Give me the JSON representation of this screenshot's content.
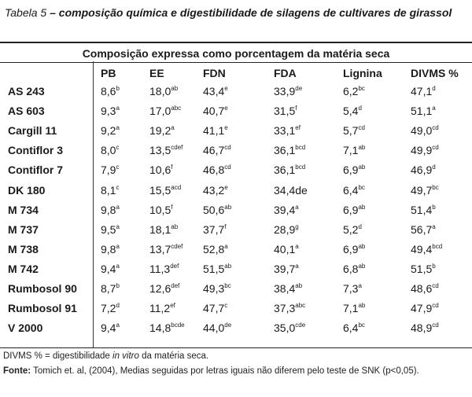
{
  "caption": {
    "label": "Tabela 5",
    "dash": " – ",
    "title": "composição química e digestibilidade de silagens de cultivares de girassol"
  },
  "subtitle": "Composição expressa como porcentagem da matéria seca",
  "headers": [
    "",
    "PB",
    "EE",
    "FDN",
    "FDA",
    "Lignina",
    "DIVMS %"
  ],
  "rows": [
    {
      "name": "AS 243",
      "cells": [
        {
          "v": "8,6",
          "s": "b"
        },
        {
          "v": "18,0",
          "s": "ab"
        },
        {
          "v": "43,4",
          "s": "e"
        },
        {
          "v": "33,9",
          "s": "de"
        },
        {
          "v": "6,2",
          "s": "bc"
        },
        {
          "v": "47,1",
          "s": "d"
        }
      ]
    },
    {
      "name": "AS 603",
      "cells": [
        {
          "v": "9,3",
          "s": "a"
        },
        {
          "v": "17,0",
          "s": "abc"
        },
        {
          "v": "40,7",
          "s": "e"
        },
        {
          "v": "31,5",
          "s": "f"
        },
        {
          "v": "5,4",
          "s": "d"
        },
        {
          "v": "51,1",
          "s": "a"
        }
      ]
    },
    {
      "name": "Cargill 11",
      "cells": [
        {
          "v": "9,2",
          "s": "a"
        },
        {
          "v": "19,2",
          "s": "a"
        },
        {
          "v": "41,1",
          "s": "e"
        },
        {
          "v": "33,1",
          "s": "ef"
        },
        {
          "v": "5,7",
          "s": "cd"
        },
        {
          "v": "49,0",
          "s": "cd"
        }
      ]
    },
    {
      "name": "Contiflor 3",
      "cells": [
        {
          "v": "8,0",
          "s": "c"
        },
        {
          "v": "13,5",
          "s": "cdef"
        },
        {
          "v": "46,7",
          "s": "cd"
        },
        {
          "v": "36,1",
          "s": "bcd"
        },
        {
          "v": "7,1",
          "s": "ab"
        },
        {
          "v": "49,9",
          "s": "cd"
        }
      ]
    },
    {
      "name": "Contiflor 7",
      "cells": [
        {
          "v": "7,9",
          "s": "c"
        },
        {
          "v": "10,6",
          "s": "f"
        },
        {
          "v": "46,8",
          "s": "cd"
        },
        {
          "v": "36,1",
          "s": "bcd"
        },
        {
          "v": "6,9",
          "s": "ab"
        },
        {
          "v": "46,9",
          "s": "d"
        }
      ]
    },
    {
      "name": "DK 180",
      "cells": [
        {
          "v": "8,1",
          "s": "c"
        },
        {
          "v": "15,5",
          "s": "acd"
        },
        {
          "v": "43,2",
          "s": "e"
        },
        {
          "v": "34,4de",
          "s": ""
        },
        {
          "v": "6,4",
          "s": "bc"
        },
        {
          "v": "49,7",
          "s": "bc"
        }
      ]
    },
    {
      "name": "M 734",
      "cells": [
        {
          "v": "9,8",
          "s": "a"
        },
        {
          "v": "10,5",
          "s": "f"
        },
        {
          "v": "50,6",
          "s": "ab"
        },
        {
          "v": "39,4",
          "s": "a"
        },
        {
          "v": "6,9",
          "s": "ab"
        },
        {
          "v": "51,4",
          "s": "b"
        }
      ]
    },
    {
      "name": "M 737",
      "cells": [
        {
          "v": "9,5",
          "s": "a"
        },
        {
          "v": "18,1",
          "s": "ab"
        },
        {
          "v": "37,7",
          "s": "f"
        },
        {
          "v": "28,9",
          "s": "g"
        },
        {
          "v": "5,2",
          "s": "d"
        },
        {
          "v": "56,7",
          "s": "a"
        }
      ]
    },
    {
      "name": "M 738",
      "cells": [
        {
          "v": "9,8",
          "s": "a"
        },
        {
          "v": "13,7",
          "s": "cdef"
        },
        {
          "v": "52,8",
          "s": "a"
        },
        {
          "v": "40,1",
          "s": "a"
        },
        {
          "v": "6,9",
          "s": "ab"
        },
        {
          "v": "49,4",
          "s": "bcd"
        }
      ]
    },
    {
      "name": "M 742",
      "cells": [
        {
          "v": "9,4",
          "s": "a"
        },
        {
          "v": "11,3",
          "s": "def"
        },
        {
          "v": "51,5",
          "s": "ab"
        },
        {
          "v": "39,7",
          "s": "a"
        },
        {
          "v": "6,8",
          "s": "ab"
        },
        {
          "v": "51,5",
          "s": "b"
        }
      ]
    },
    {
      "name": "Rumbosol 90",
      "cells": [
        {
          "v": "8,7",
          "s": "b"
        },
        {
          "v": "12,6",
          "s": "def"
        },
        {
          "v": "49,3",
          "s": "bc"
        },
        {
          "v": "38,4",
          "s": "ab"
        },
        {
          "v": "7,3",
          "s": "a"
        },
        {
          "v": "48,6",
          "s": "cd"
        }
      ]
    },
    {
      "name": "Rumbosol 91",
      "cells": [
        {
          "v": "7,2",
          "s": "d"
        },
        {
          "v": "11,2",
          "s": "ef"
        },
        {
          "v": "47,7",
          "s": "c"
        },
        {
          "v": "37,3",
          "s": "abc"
        },
        {
          "v": "7,1",
          "s": "ab"
        },
        {
          "v": "47,9",
          "s": "cd"
        }
      ]
    },
    {
      "name": "V 2000",
      "cells": [
        {
          "v": "9,4",
          "s": "a"
        },
        {
          "v": "14,8",
          "s": "bcde"
        },
        {
          "v": "44,0",
          "s": "de"
        },
        {
          "v": "35,0",
          "s": "cde"
        },
        {
          "v": "6,4",
          "s": "bc"
        },
        {
          "v": "48,9",
          "s": "cd"
        }
      ]
    }
  ],
  "footnote_divms": {
    "prefix": "DIVMS % = digestibilidade ",
    "italic": "in vitro",
    "suffix": " da matéria seca."
  },
  "footnote_source": {
    "label": "Fonte:",
    "text": " Tomich et. al, (2004), Medias seguidas por letras iguais não diferem pelo teste de SNK (p<0,05)."
  }
}
